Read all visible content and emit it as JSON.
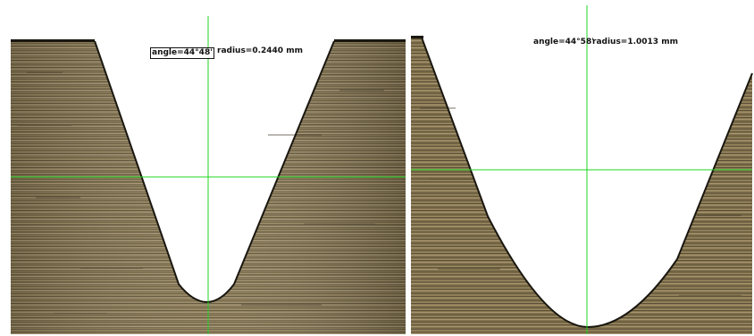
{
  "panels": [
    {
      "angle_label": "angle=44°48'",
      "radius_label": "radius=0.2440 mm",
      "radius_mm": 0.244
    },
    {
      "angle_label": "angle=44°58'",
      "radius_label": "radius=1.0013 mm",
      "radius_mm": 1.0013
    }
  ],
  "colors": {
    "crosshair": "#22d422",
    "metal_base": "#8a7a56",
    "metal_dark": "#4f4532",
    "metal_light": "#b3a27a",
    "background": "#ffffff"
  }
}
